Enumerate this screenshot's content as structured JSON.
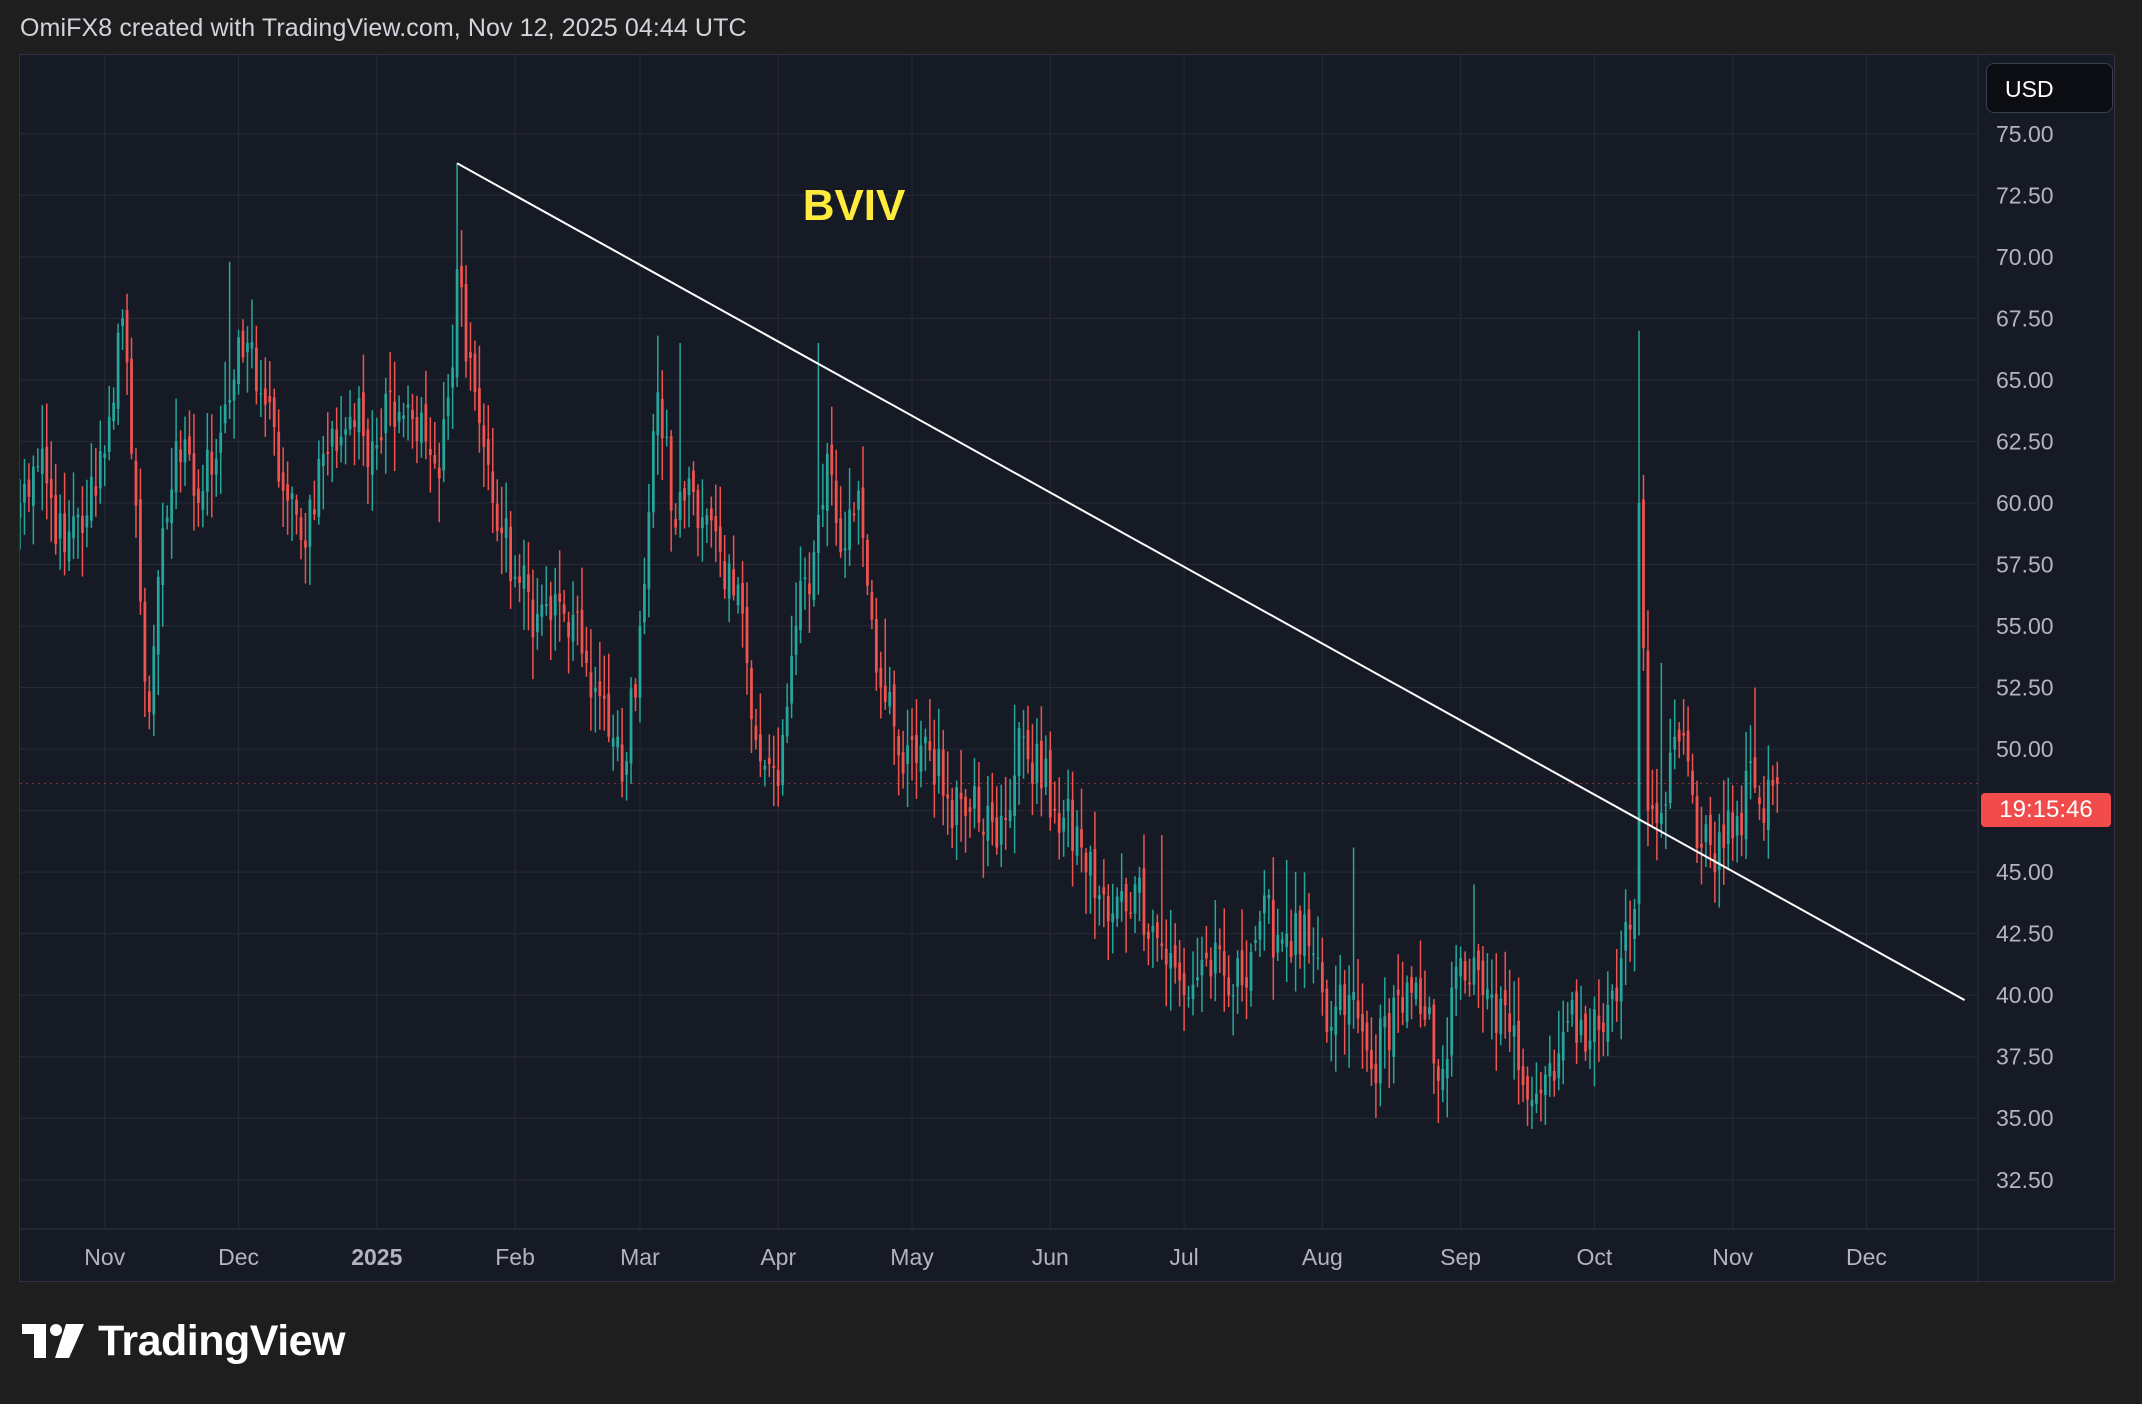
{
  "header": {
    "attribution": "OmiFX8 created with TradingView.com, Nov 12, 2025 04:44 UTC"
  },
  "toolbar": {
    "currency_label": "USD"
  },
  "price_label": {
    "countdown": "19:15:46",
    "color": "#f24b4b"
  },
  "footer": {
    "brand": "TradingView",
    "logo_icon": "tradingview-logo-icon"
  },
  "colors": {
    "up": "#26a69a",
    "down": "#ef5350",
    "background": "#161a25",
    "grid": "#262a36",
    "annotation": "#ffeb3b",
    "trendline": "#ffffff"
  },
  "chart_data": {
    "type": "candlestick",
    "annotation": "BVIV",
    "y_ticks": [
      "75.00",
      "72.50",
      "70.00",
      "67.50",
      "65.00",
      "62.50",
      "60.00",
      "57.50",
      "55.00",
      "52.50",
      "50.00",
      "45.00",
      "42.50",
      "40.00",
      "37.50",
      "35.00",
      "32.50"
    ],
    "ylim": [
      30.5,
      78.2
    ],
    "x_ticks": [
      "Nov",
      "Dec",
      "2025",
      "Feb",
      "Mar",
      "Apr",
      "May",
      "Jun",
      "Jul",
      "Aug",
      "Sep",
      "Oct",
      "Nov",
      "Dec"
    ],
    "x_range": [
      "2024-10-13",
      "2025-12-26"
    ],
    "last_price": 48.6,
    "trendline": [
      {
        "date": "2025-01-19",
        "value": 73.8
      },
      {
        "date": "2025-12-23",
        "value": 39.8
      }
    ],
    "anchors": [
      [
        "2024-10-13",
        60.0
      ],
      [
        "2024-10-17",
        61.5
      ],
      [
        "2024-10-23",
        58.0
      ],
      [
        "2024-10-28",
        59.5
      ],
      [
        "2024-11-02",
        63.5
      ],
      [
        "2024-11-05",
        67.5
      ],
      [
        "2024-11-07",
        62.0
      ],
      [
        "2024-11-09",
        56.0
      ],
      [
        "2024-11-11",
        51.5
      ],
      [
        "2024-11-13",
        57.0
      ],
      [
        "2024-11-17",
        62.5
      ],
      [
        "2024-11-22",
        60.0
      ],
      [
        "2024-11-28",
        64.0
      ],
      [
        "2024-12-03",
        66.5
      ],
      [
        "2024-12-07",
        64.0
      ],
      [
        "2024-12-11",
        60.5
      ],
      [
        "2024-12-15",
        58.5
      ],
      [
        "2024-12-20",
        62.0
      ],
      [
        "2024-12-26",
        63.5
      ],
      [
        "2024-12-31",
        62.5
      ],
      [
        "2025-01-04",
        64.5
      ],
      [
        "2025-01-08",
        64.0
      ],
      [
        "2025-01-12",
        62.5
      ],
      [
        "2025-01-15",
        61.0
      ],
      [
        "2025-01-18",
        65.5
      ],
      [
        "2025-01-19",
        69.5
      ],
      [
        "2025-01-23",
        64.5
      ],
      [
        "2025-01-27",
        60.0
      ],
      [
        "2025-02-01",
        57.0
      ],
      [
        "2025-02-06",
        55.5
      ],
      [
        "2025-02-12",
        55.5
      ],
      [
        "2025-02-17",
        53.5
      ],
      [
        "2025-02-22",
        50.5
      ],
      [
        "2025-02-26",
        49.5
      ],
      [
        "2025-03-01",
        55.0
      ],
      [
        "2025-03-05",
        64.5
      ],
      [
        "2025-03-09",
        59.0
      ],
      [
        "2025-03-12",
        61.0
      ],
      [
        "2025-03-16",
        59.5
      ],
      [
        "2025-03-20",
        56.5
      ],
      [
        "2025-03-24",
        55.5
      ],
      [
        "2025-03-28",
        49.5
      ],
      [
        "2025-04-01",
        48.5
      ],
      [
        "2025-04-05",
        55.0
      ],
      [
        "2025-04-09",
        58.0
      ],
      [
        "2025-04-12",
        62.0
      ],
      [
        "2025-04-15",
        58.0
      ],
      [
        "2025-04-19",
        60.5
      ],
      [
        "2025-04-24",
        52.5
      ],
      [
        "2025-04-29",
        49.0
      ],
      [
        "2025-05-04",
        50.5
      ],
      [
        "2025-05-09",
        48.0
      ],
      [
        "2025-05-15",
        48.5
      ],
      [
        "2025-05-20",
        46.0
      ],
      [
        "2025-05-26",
        50.5
      ],
      [
        "2025-06-02",
        47.5
      ],
      [
        "2025-06-08",
        46.0
      ],
      [
        "2025-06-14",
        43.0
      ],
      [
        "2025-06-20",
        44.5
      ],
      [
        "2025-06-26",
        42.0
      ],
      [
        "2025-07-01",
        40.0
      ],
      [
        "2025-07-06",
        41.5
      ],
      [
        "2025-07-12",
        40.0
      ],
      [
        "2025-07-18",
        43.0
      ],
      [
        "2025-07-24",
        42.5
      ],
      [
        "2025-07-29",
        42.0
      ],
      [
        "2025-08-02",
        38.5
      ],
      [
        "2025-08-07",
        40.0
      ],
      [
        "2025-08-12",
        37.0
      ],
      [
        "2025-08-18",
        40.0
      ],
      [
        "2025-08-24",
        39.0
      ],
      [
        "2025-08-28",
        37.0
      ],
      [
        "2025-09-01",
        41.5
      ],
      [
        "2025-09-06",
        40.0
      ],
      [
        "2025-09-12",
        38.5
      ],
      [
        "2025-09-18",
        36.0
      ],
      [
        "2025-09-24",
        38.5
      ],
      [
        "2025-09-28",
        39.0
      ],
      [
        "2025-10-03",
        38.5
      ],
      [
        "2025-10-07",
        41.5
      ],
      [
        "2025-10-10",
        43.5
      ],
      [
        "2025-10-11",
        60.0
      ],
      [
        "2025-10-13",
        47.5
      ],
      [
        "2025-10-15",
        47.0
      ],
      [
        "2025-10-19",
        50.5
      ],
      [
        "2025-10-22",
        49.5
      ],
      [
        "2025-10-25",
        46.0
      ],
      [
        "2025-10-28",
        45.0
      ],
      [
        "2025-10-31",
        47.5
      ],
      [
        "2025-11-03",
        46.5
      ],
      [
        "2025-11-05",
        49.5
      ],
      [
        "2025-11-08",
        47.0
      ],
      [
        "2025-11-11",
        48.6
      ]
    ],
    "spikes": [
      {
        "date": "2024-11-06",
        "high": 68.5
      },
      {
        "date": "2024-11-29",
        "high": 69.8
      },
      {
        "date": "2025-01-19",
        "high": 73.8
      },
      {
        "date": "2025-03-05",
        "high": 66.8
      },
      {
        "date": "2025-03-10",
        "high": 66.5
      },
      {
        "date": "2025-04-10",
        "high": 66.5
      },
      {
        "date": "2025-04-25",
        "high": 55.3
      },
      {
        "date": "2025-05-24",
        "high": 51.8
      },
      {
        "date": "2025-06-26",
        "high": 46.5
      },
      {
        "date": "2025-07-24",
        "high": 45.5
      },
      {
        "date": "2025-08-08",
        "high": 46.0
      },
      {
        "date": "2025-09-04",
        "high": 44.5
      },
      {
        "date": "2025-10-11",
        "high": 67.0
      },
      {
        "date": "2025-10-16",
        "high": 53.5
      },
      {
        "date": "2025-11-06",
        "high": 52.5
      }
    ]
  }
}
